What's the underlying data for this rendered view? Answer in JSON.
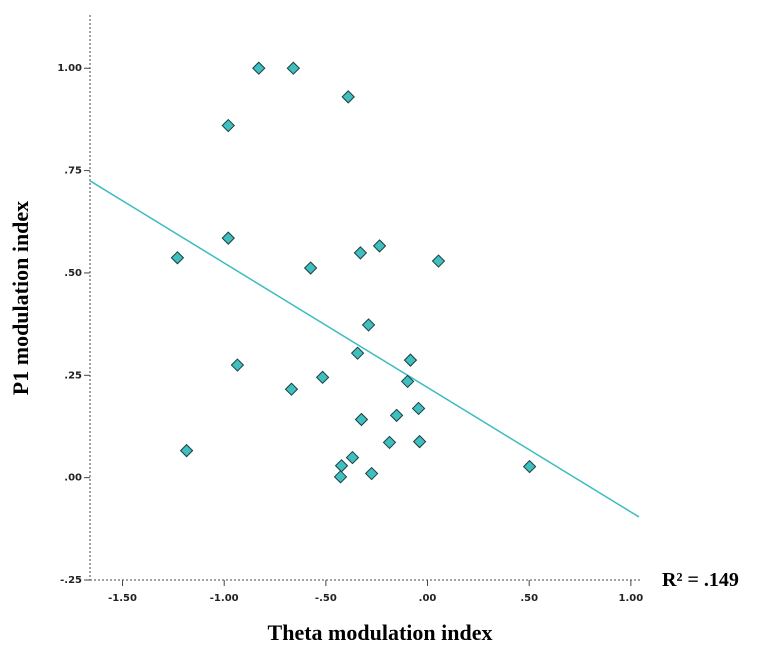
{
  "chart_data": {
    "type": "scatter",
    "x_label": "Theta modulation index",
    "y_label": "P1 modulation index",
    "annotation": "R² = .149",
    "xlim": [
      -1.66,
      1.045
    ],
    "ylim": [
      -0.25,
      1.13
    ],
    "xticks": [
      {
        "value": -1.5,
        "label": "-1.50"
      },
      {
        "value": -1,
        "label": "-1.00"
      },
      {
        "value": -0.5,
        "label": "-.50"
      },
      {
        "value": 0,
        "label": ".00"
      },
      {
        "value": 0.5,
        "label": ".50"
      },
      {
        "value": 1,
        "label": "1.00"
      }
    ],
    "yticks": [
      {
        "value": -0.25,
        "label": "-.25"
      },
      {
        "value": 0,
        "label": ".00"
      },
      {
        "value": 0.25,
        "label": ".25"
      },
      {
        "value": 0.5,
        "label": ".50"
      },
      {
        "value": 0.75,
        "label": ".75"
      },
      {
        "value": 1,
        "label": "1.00"
      }
    ],
    "color": "#3fbfbf",
    "x": [
      -0.83,
      -0.66,
      -0.39,
      -0.98,
      -0.98,
      -1.23,
      -0.575,
      -0.236,
      -0.33,
      0.054,
      -0.29,
      -0.344,
      -0.084,
      -0.935,
      -0.098,
      -0.516,
      -0.669,
      -0.044,
      -0.152,
      -0.325,
      -1.185,
      -0.187,
      -0.039,
      -0.369,
      -0.423,
      -0.275,
      -0.428,
      0.502
    ],
    "y": [
      1.0,
      1.0,
      0.93,
      0.86,
      0.585,
      0.537,
      0.512,
      0.566,
      0.549,
      0.529,
      0.373,
      0.304,
      0.287,
      0.275,
      0.235,
      0.245,
      0.216,
      0.169,
      0.152,
      0.142,
      0.066,
      0.086,
      0.088,
      0.049,
      0.029,
      0.01,
      0.002,
      0.027
    ],
    "fit_line": {
      "x": [
        -1.66,
        1.04
      ],
      "y": [
        0.725,
        -0.096
      ],
      "color": "#3bbcc0"
    }
  }
}
